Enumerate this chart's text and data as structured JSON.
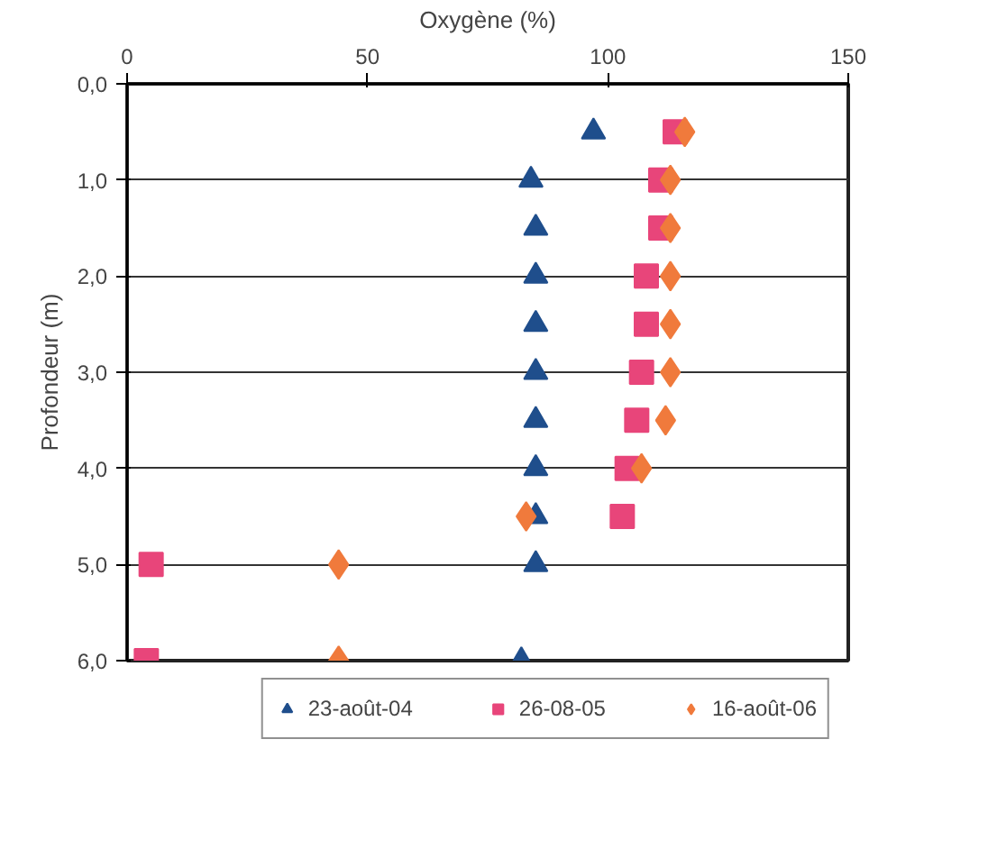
{
  "chart_data": {
    "type": "scatter",
    "xlabel": "Oxygène (%)",
    "ylabel": "Profondeur (m)",
    "xlim": [
      0,
      150
    ],
    "xticks": [
      0,
      50,
      100,
      150
    ],
    "ylim": [
      6,
      0
    ],
    "yticks": [
      {
        "value": 0,
        "label": "0,0"
      },
      {
        "value": 1,
        "label": "1,0"
      },
      {
        "value": 2,
        "label": "2,0"
      },
      {
        "value": 3,
        "label": "3,0"
      },
      {
        "value": 4,
        "label": "4,0"
      },
      {
        "value": 5,
        "label": "5,0"
      },
      {
        "value": 6,
        "label": "6,0"
      }
    ],
    "grid": "y",
    "legend": "bottom",
    "series": [
      {
        "name": "23-août-04",
        "color": "#1f4e8c",
        "marker": "triangle",
        "x": [
          97,
          84,
          85,
          85,
          85,
          85,
          85,
          85,
          85,
          85,
          82
        ],
        "values": [
          0.5,
          1,
          1.5,
          2,
          2.5,
          3,
          3.5,
          4,
          4.5,
          5,
          6
        ]
      },
      {
        "name": "26-08-05",
        "color": "#e8457a",
        "marker": "square",
        "x": [
          114,
          111,
          111,
          108,
          108,
          107,
          106,
          104,
          103,
          5,
          4
        ],
        "values": [
          0.5,
          1,
          1.5,
          2,
          2.5,
          3,
          3.5,
          4,
          4.5,
          5,
          6
        ]
      },
      {
        "name": "16-août-06",
        "color": "#f07a3c",
        "marker": "diamond",
        "x": [
          116,
          113,
          113,
          113,
          113,
          113,
          112,
          107,
          83,
          44,
          44
        ],
        "values": [
          0.5,
          1,
          1.5,
          2,
          2.5,
          3,
          3.5,
          4,
          4.5,
          5,
          6
        ]
      }
    ]
  }
}
